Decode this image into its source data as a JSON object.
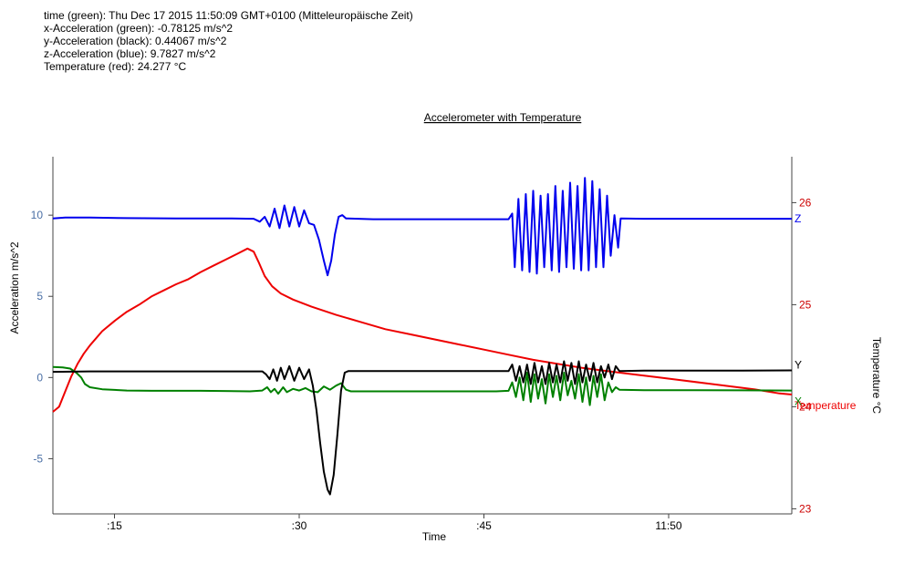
{
  "readout": {
    "time": "time (green): Thu Dec 17 2015 11:50:09 GMT+0100 (Mitteleuropäische Zeit)",
    "x": "x-Acceleration (green): -0.78125 m/s^2",
    "y": "y-Acceleration (black): 0.44067 m/s^2",
    "z": "z-Acceleration (blue): 9.7827 m/s^2",
    "temp": "Temperature (red): 24.277 °C"
  },
  "chart_data": {
    "type": "line",
    "title": "Accelerometer with Temperature",
    "xlabel": "Time",
    "ylabel": "Acceleration m/s^2",
    "y2label": "Temperature °C",
    "xlim": [
      0,
      60
    ],
    "ylim": [
      -8.4,
      13.6
    ],
    "y2lim": [
      22.95,
      26.45
    ],
    "x_ticks": [
      {
        "t": 5,
        "label": ":15"
      },
      {
        "t": 20,
        "label": ":30"
      },
      {
        "t": 35,
        "label": ":45"
      },
      {
        "t": 50,
        "label": "11:50"
      }
    ],
    "y_ticks": [
      {
        "v": 10,
        "label": "10"
      },
      {
        "v": 5,
        "label": "5"
      },
      {
        "v": 0,
        "label": "0"
      },
      {
        "v": -5,
        "label": "-5"
      }
    ],
    "y2_ticks": [
      {
        "v": 26,
        "label": "26"
      },
      {
        "v": 25,
        "label": "25"
      },
      {
        "v": 24,
        "label": "24"
      },
      {
        "v": 23,
        "label": "23"
      }
    ],
    "grid": false,
    "colors": {
      "z": "#0000ee",
      "y": "#000000",
      "x": "#008000",
      "temp": "#ee0000",
      "left_axis": "#4a6fa5",
      "right_axis": "#cc0000"
    },
    "series": [
      {
        "key": "z",
        "name": "Z",
        "axis": "left",
        "color": "#0000ee",
        "points": [
          [
            0,
            9.8
          ],
          [
            1,
            9.85
          ],
          [
            3,
            9.85
          ],
          [
            6,
            9.82
          ],
          [
            10,
            9.8
          ],
          [
            14,
            9.8
          ],
          [
            16.3,
            9.78
          ],
          [
            16.8,
            9.6
          ],
          [
            17.2,
            9.9
          ],
          [
            17.6,
            9.3
          ],
          [
            18,
            10.4
          ],
          [
            18.4,
            9.2
          ],
          [
            18.8,
            10.6
          ],
          [
            19.2,
            9.3
          ],
          [
            19.6,
            10.5
          ],
          [
            20,
            9.3
          ],
          [
            20.4,
            10.3
          ],
          [
            20.8,
            9.5
          ],
          [
            21.2,
            9.4
          ],
          [
            21.6,
            8.5
          ],
          [
            22,
            7.2
          ],
          [
            22.3,
            6.3
          ],
          [
            22.6,
            7.2
          ],
          [
            22.9,
            8.8
          ],
          [
            23.2,
            9.9
          ],
          [
            23.5,
            10.0
          ],
          [
            23.8,
            9.8
          ],
          [
            26,
            9.75
          ],
          [
            30,
            9.75
          ],
          [
            34,
            9.75
          ],
          [
            37,
            9.75
          ],
          [
            37.3,
            10.1
          ],
          [
            37.5,
            6.8
          ],
          [
            37.8,
            11.0
          ],
          [
            38.1,
            6.6
          ],
          [
            38.4,
            11.3
          ],
          [
            38.7,
            6.5
          ],
          [
            39,
            11.5
          ],
          [
            39.3,
            6.4
          ],
          [
            39.6,
            11.2
          ],
          [
            39.9,
            6.8
          ],
          [
            40.2,
            11.3
          ],
          [
            40.5,
            6.6
          ],
          [
            40.8,
            11.8
          ],
          [
            41.1,
            6.5
          ],
          [
            41.4,
            11.5
          ],
          [
            41.7,
            6.8
          ],
          [
            42,
            12.0
          ],
          [
            42.3,
            6.7
          ],
          [
            42.6,
            11.8
          ],
          [
            42.9,
            6.6
          ],
          [
            43.2,
            12.3
          ],
          [
            43.5,
            6.6
          ],
          [
            43.8,
            12.1
          ],
          [
            44.1,
            6.8
          ],
          [
            44.4,
            11.6
          ],
          [
            44.7,
            6.8
          ],
          [
            45,
            11.2
          ],
          [
            45.3,
            7.5
          ],
          [
            45.6,
            10.0
          ],
          [
            45.9,
            8.0
          ],
          [
            46.1,
            9.8
          ],
          [
            48,
            9.78
          ],
          [
            52,
            9.78
          ],
          [
            56,
            9.78
          ],
          [
            60,
            9.78
          ]
        ]
      },
      {
        "key": "y",
        "name": "Y",
        "axis": "left",
        "color": "#000000",
        "points": [
          [
            0,
            0.35
          ],
          [
            3,
            0.38
          ],
          [
            6,
            0.38
          ],
          [
            10,
            0.38
          ],
          [
            14,
            0.38
          ],
          [
            17,
            0.38
          ],
          [
            17.3,
            0.2
          ],
          [
            17.6,
            -0.1
          ],
          [
            17.9,
            0.5
          ],
          [
            18.2,
            -0.2
          ],
          [
            18.5,
            0.6
          ],
          [
            18.8,
            -0.1
          ],
          [
            19.2,
            0.7
          ],
          [
            19.6,
            -0.2
          ],
          [
            20,
            0.6
          ],
          [
            20.4,
            -0.1
          ],
          [
            20.8,
            0.5
          ],
          [
            21.1,
            -0.5
          ],
          [
            21.4,
            -2.0
          ],
          [
            21.7,
            -4.0
          ],
          [
            22,
            -5.8
          ],
          [
            22.3,
            -6.9
          ],
          [
            22.5,
            -7.2
          ],
          [
            22.8,
            -6.0
          ],
          [
            23.1,
            -3.5
          ],
          [
            23.4,
            -0.8
          ],
          [
            23.7,
            0.3
          ],
          [
            24,
            0.4
          ],
          [
            28,
            0.4
          ],
          [
            32,
            0.4
          ],
          [
            36,
            0.4
          ],
          [
            37,
            0.4
          ],
          [
            37.3,
            0.8
          ],
          [
            37.6,
            -0.2
          ],
          [
            37.9,
            0.7
          ],
          [
            38.2,
            -0.3
          ],
          [
            38.5,
            0.8
          ],
          [
            38.8,
            -0.4
          ],
          [
            39.1,
            0.9
          ],
          [
            39.4,
            -0.3
          ],
          [
            39.7,
            0.7
          ],
          [
            40,
            -0.4
          ],
          [
            40.3,
            0.9
          ],
          [
            40.6,
            -0.3
          ],
          [
            40.9,
            0.8
          ],
          [
            41.2,
            -0.3
          ],
          [
            41.5,
            1.0
          ],
          [
            41.8,
            -0.2
          ],
          [
            42.1,
            0.9
          ],
          [
            42.4,
            -0.4
          ],
          [
            42.7,
            1.0
          ],
          [
            43,
            -0.3
          ],
          [
            43.3,
            0.8
          ],
          [
            43.6,
            -0.2
          ],
          [
            43.9,
            0.9
          ],
          [
            44.2,
            -0.3
          ],
          [
            44.5,
            0.7
          ],
          [
            44.8,
            0.0
          ],
          [
            45.1,
            0.8
          ],
          [
            45.4,
            -0.1
          ],
          [
            45.7,
            0.7
          ],
          [
            46,
            0.4
          ],
          [
            48,
            0.42
          ],
          [
            52,
            0.42
          ],
          [
            56,
            0.43
          ],
          [
            60,
            0.44
          ]
        ]
      },
      {
        "key": "x",
        "name": "X",
        "axis": "left",
        "color": "#008000",
        "points": [
          [
            0,
            0.65
          ],
          [
            0.8,
            0.62
          ],
          [
            1.4,
            0.55
          ],
          [
            1.9,
            0.3
          ],
          [
            2.3,
            0.0
          ],
          [
            2.6,
            -0.4
          ],
          [
            3,
            -0.6
          ],
          [
            4,
            -0.72
          ],
          [
            6,
            -0.8
          ],
          [
            8,
            -0.82
          ],
          [
            12,
            -0.82
          ],
          [
            16,
            -0.85
          ],
          [
            17,
            -0.8
          ],
          [
            17.4,
            -0.6
          ],
          [
            17.7,
            -0.9
          ],
          [
            18,
            -0.7
          ],
          [
            18.3,
            -1.0
          ],
          [
            18.7,
            -0.6
          ],
          [
            19,
            -0.9
          ],
          [
            19.5,
            -0.7
          ],
          [
            20,
            -0.8
          ],
          [
            20.5,
            -0.65
          ],
          [
            21,
            -0.85
          ],
          [
            21.5,
            -0.9
          ],
          [
            22,
            -0.55
          ],
          [
            22.5,
            -0.75
          ],
          [
            23,
            -0.5
          ],
          [
            23.4,
            -0.35
          ],
          [
            23.8,
            -0.75
          ],
          [
            24.2,
            -0.85
          ],
          [
            28,
            -0.85
          ],
          [
            32,
            -0.85
          ],
          [
            36,
            -0.85
          ],
          [
            37,
            -0.82
          ],
          [
            37.3,
            -0.3
          ],
          [
            37.6,
            -1.2
          ],
          [
            37.9,
            0.0
          ],
          [
            38.2,
            -1.4
          ],
          [
            38.5,
            0.3
          ],
          [
            38.8,
            -1.5
          ],
          [
            39.1,
            0.2
          ],
          [
            39.4,
            -1.3
          ],
          [
            39.7,
            -0.1
          ],
          [
            40,
            -1.6
          ],
          [
            40.3,
            0.2
          ],
          [
            40.6,
            -1.2
          ],
          [
            40.9,
            0.1
          ],
          [
            41.2,
            -1.4
          ],
          [
            41.5,
            0.3
          ],
          [
            41.8,
            -1.1
          ],
          [
            42.1,
            -0.2
          ],
          [
            42.4,
            -1.3
          ],
          [
            42.7,
            0.2
          ],
          [
            43,
            -1.5
          ],
          [
            43.3,
            0.0
          ],
          [
            43.6,
            -1.7
          ],
          [
            43.9,
            0.1
          ],
          [
            44.2,
            -1.2
          ],
          [
            44.5,
            0.2
          ],
          [
            44.8,
            -1.4
          ],
          [
            45.1,
            -0.3
          ],
          [
            45.4,
            -0.9
          ],
          [
            45.7,
            -0.6
          ],
          [
            46,
            -0.75
          ],
          [
            48,
            -0.78
          ],
          [
            52,
            -0.78
          ],
          [
            56,
            -0.79
          ],
          [
            60,
            -0.8
          ]
        ]
      },
      {
        "key": "temp",
        "name": "Temperature",
        "axis": "right",
        "color": "#ee0000",
        "points": [
          [
            0,
            23.95
          ],
          [
            0.5,
            24.0
          ],
          [
            1,
            24.15
          ],
          [
            1.5,
            24.3
          ],
          [
            2,
            24.42
          ],
          [
            2.5,
            24.52
          ],
          [
            3,
            24.6
          ],
          [
            4,
            24.74
          ],
          [
            5,
            24.84
          ],
          [
            6,
            24.93
          ],
          [
            7,
            25.0
          ],
          [
            8,
            25.08
          ],
          [
            9,
            25.14
          ],
          [
            10,
            25.2
          ],
          [
            11,
            25.25
          ],
          [
            12,
            25.32
          ],
          [
            13,
            25.38
          ],
          [
            14,
            25.44
          ],
          [
            15,
            25.5
          ],
          [
            15.8,
            25.55
          ],
          [
            16.3,
            25.52
          ],
          [
            16.7,
            25.42
          ],
          [
            17.2,
            25.28
          ],
          [
            17.8,
            25.18
          ],
          [
            18.5,
            25.11
          ],
          [
            19.5,
            25.05
          ],
          [
            21,
            24.98
          ],
          [
            23,
            24.9
          ],
          [
            25,
            24.83
          ],
          [
            27,
            24.76
          ],
          [
            29,
            24.71
          ],
          [
            31,
            24.66
          ],
          [
            33,
            24.61
          ],
          [
            35,
            24.56
          ],
          [
            37,
            24.51
          ],
          [
            39,
            24.46
          ],
          [
            41,
            24.42
          ],
          [
            43,
            24.38
          ],
          [
            45,
            24.35
          ],
          [
            47,
            24.32
          ],
          [
            49,
            24.29
          ],
          [
            51,
            24.26
          ],
          [
            53,
            24.23
          ],
          [
            55,
            24.2
          ],
          [
            57,
            24.17
          ],
          [
            59,
            24.13
          ],
          [
            60,
            24.12
          ]
        ]
      }
    ]
  }
}
